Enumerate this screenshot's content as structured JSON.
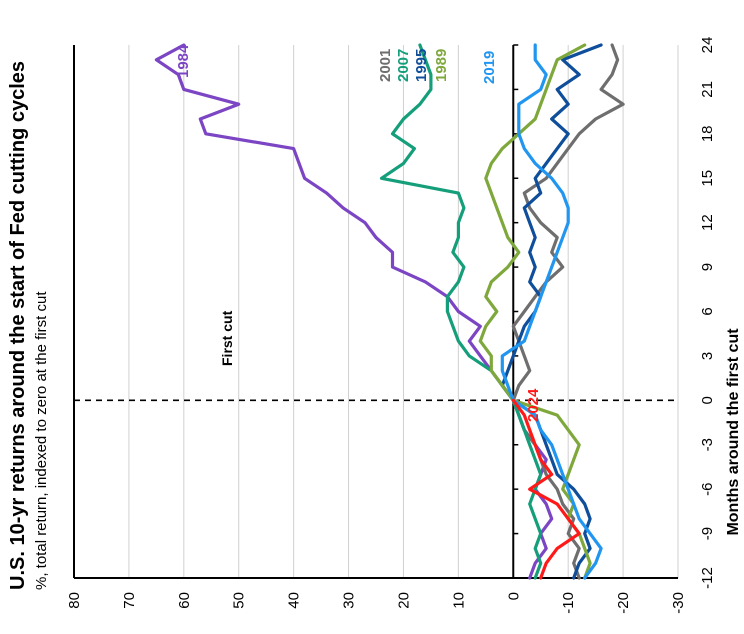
{
  "chart_data": {
    "type": "line",
    "title": "U.S. 10-yr returns around the start of Fed cutting cycles",
    "subtitle": "%, total return, indexed to zero at the first cut",
    "xlabel": "Months around the first cut",
    "ylabel": "",
    "xlim": [
      -12,
      24
    ],
    "ylim": [
      -30,
      80
    ],
    "x_ticks": [
      -12,
      -9,
      -6,
      -3,
      0,
      3,
      6,
      9,
      12,
      15,
      18,
      21,
      24
    ],
    "x_tick_labels": [
      "-12",
      "-9",
      "-6",
      "-3",
      "0",
      "3",
      "6",
      "9",
      "12",
      "15",
      "18",
      "21",
      "24"
    ],
    "y_ticks": [
      -30,
      -20,
      -10,
      0,
      10,
      20,
      30,
      40,
      50,
      60,
      70,
      80
    ],
    "y_tick_labels": [
      "-30",
      "-20",
      "-10",
      "0",
      "10",
      "20",
      "30",
      "40",
      "50",
      "60",
      "70",
      "80"
    ],
    "grid": true,
    "annotation": "First cut",
    "series": [
      {
        "name": "1984",
        "color": "#7B45C4",
        "x": [
          -12,
          -11,
          -10,
          -9,
          -8,
          -7,
          -6,
          -5,
          -4,
          -3,
          -2,
          -1,
          0,
          1,
          2,
          3,
          4,
          5,
          6,
          7,
          8,
          9,
          10,
          11,
          12,
          13,
          14,
          15,
          16,
          17,
          18,
          19,
          20,
          21,
          22,
          23,
          24
        ],
        "y": [
          -3,
          -4,
          -6,
          -5,
          -7,
          -6,
          -4,
          -5,
          -6,
          -4,
          -2,
          -1,
          0,
          2,
          4,
          6,
          8,
          6,
          10,
          12,
          16,
          22,
          22,
          25,
          27,
          31,
          34,
          38,
          39,
          40,
          56,
          57,
          50,
          60,
          61,
          65,
          60
        ]
      },
      {
        "name": "2001",
        "color": "#6E6E6E",
        "x": [
          -12,
          -11,
          -10,
          -9,
          -8,
          -7,
          -6,
          -5,
          -4,
          -3,
          -2,
          -1,
          0,
          1,
          2,
          3,
          4,
          5,
          6,
          7,
          8,
          9,
          10,
          11,
          12,
          13,
          14,
          15,
          16,
          17,
          18,
          19,
          20,
          21,
          22,
          23,
          24
        ],
        "y": [
          -12,
          -11,
          -12,
          -10,
          -11,
          -9,
          -8,
          -6,
          -5,
          -4,
          -2,
          -1,
          0,
          -1,
          -3,
          -2,
          -1,
          0,
          -2,
          -4,
          -6,
          -9,
          -7,
          -8,
          -5,
          -3,
          -2,
          -6,
          -8,
          -10,
          -12,
          -15,
          -20,
          -16,
          -18,
          -19,
          -18
        ]
      },
      {
        "name": "2007",
        "color": "#159E7A",
        "x": [
          -12,
          -11,
          -10,
          -9,
          -8,
          -7,
          -6,
          -5,
          -4,
          -3,
          -2,
          -1,
          0,
          1,
          2,
          3,
          4,
          5,
          6,
          7,
          8,
          9,
          10,
          11,
          12,
          13,
          14,
          15,
          16,
          17,
          18,
          19,
          20,
          21,
          22,
          23,
          24
        ],
        "y": [
          -4,
          -5,
          -4,
          -5,
          -4,
          -3,
          -4,
          -5,
          -4,
          -3,
          -2,
          -1,
          0,
          2,
          4,
          8,
          10,
          11,
          12,
          12,
          10,
          9,
          11,
          10,
          10,
          9,
          10,
          24,
          20,
          18,
          22,
          20,
          17,
          15,
          15,
          16,
          17
        ]
      },
      {
        "name": "1995",
        "color": "#0E4E9A",
        "x": [
          -12,
          -11,
          -10,
          -9,
          -8,
          -7,
          -6,
          -5,
          -4,
          -3,
          -2,
          -1,
          0,
          1,
          2,
          3,
          4,
          5,
          6,
          7,
          8,
          9,
          10,
          11,
          12,
          13,
          14,
          15,
          16,
          17,
          18,
          19,
          20,
          21,
          22,
          23,
          24
        ],
        "y": [
          -11,
          -12,
          -14,
          -13,
          -14,
          -13,
          -11,
          -8,
          -7,
          -6,
          -5,
          -4,
          0,
          2,
          1,
          0,
          -1,
          -2,
          -4,
          -5,
          -3,
          -4,
          -3,
          -4,
          -3,
          -2,
          -5,
          -4,
          -6,
          -8,
          -10,
          -7,
          -10,
          -8,
          -12,
          -9,
          -16
        ]
      },
      {
        "name": "1989",
        "color": "#7FA83C",
        "x": [
          -12,
          -11,
          -10,
          -9,
          -8,
          -7,
          -6,
          -5,
          -4,
          -3,
          -2,
          -1,
          0,
          1,
          2,
          3,
          4,
          5,
          6,
          7,
          8,
          9,
          10,
          11,
          12,
          13,
          14,
          15,
          16,
          17,
          18,
          19,
          20,
          21,
          22,
          23,
          24
        ],
        "y": [
          -13,
          -14,
          -13,
          -12,
          -10,
          -11,
          -9,
          -10,
          -11,
          -12,
          -10,
          -8,
          0,
          2,
          4,
          4,
          6,
          5,
          3,
          5,
          4,
          1,
          -1,
          1,
          2,
          3,
          4,
          5,
          4,
          2,
          -1,
          -4,
          -5,
          -6,
          -7,
          -8,
          -13
        ]
      },
      {
        "name": "2019",
        "color": "#2196F0",
        "x": [
          -12,
          -11,
          -10,
          -9,
          -8,
          -7,
          -6,
          -5,
          -4,
          -3,
          -2,
          -1,
          0,
          1,
          2,
          3,
          4,
          5,
          6,
          7,
          8,
          9,
          10,
          11,
          12,
          13,
          14,
          15,
          16,
          17,
          18,
          19,
          20,
          21,
          22,
          23,
          24
        ],
        "y": [
          -13,
          -15,
          -16,
          -14,
          -12,
          -11,
          -10,
          -9,
          -8,
          -7,
          -5,
          -4,
          0,
          1,
          2,
          2,
          -2,
          -3,
          -4,
          -5,
          -6,
          -7,
          -8,
          -9,
          -10,
          -10,
          -9,
          -7,
          -4,
          -2,
          -1,
          -1,
          -1,
          -5,
          -6,
          -4,
          -4
        ]
      },
      {
        "name": "2024",
        "color": "#FF1A1A",
        "x": [
          -12,
          -11,
          -10,
          -9,
          -8,
          -7,
          -6,
          -5,
          -4,
          -3,
          -2,
          -1,
          0
        ],
        "y": [
          -5,
          -6,
          -8,
          -12,
          -10,
          -8,
          -3,
          -7,
          -5,
          -4,
          -3,
          -2,
          0
        ]
      }
    ]
  }
}
